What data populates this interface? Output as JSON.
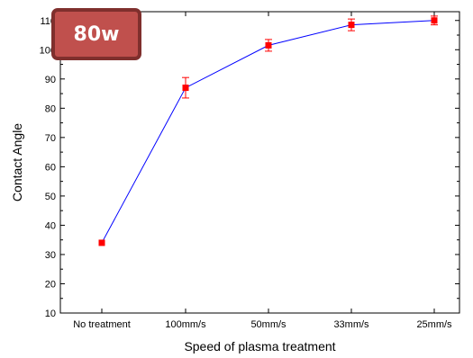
{
  "badge": {
    "label": "80w"
  },
  "colors": {
    "line": "#0000ff",
    "marker": "#ff0000",
    "error_bar": "#ff0000",
    "badge_fill": "#c0504d",
    "badge_border": "#7f2f2d"
  },
  "chart_data": {
    "type": "line",
    "categories": [
      "No treatment",
      "100mm/s",
      "50mm/s",
      "33mm/s",
      "25mm/s"
    ],
    "values": [
      34,
      87,
      101.5,
      108.5,
      110
    ],
    "errors": [
      0,
      3.5,
      2,
      2,
      1.5
    ],
    "xlabel": "Speed of plasma treatment",
    "ylabel": "Contact  Angle",
    "ylim": [
      10,
      113
    ],
    "yticks": [
      10,
      20,
      30,
      40,
      50,
      60,
      70,
      80,
      90,
      100,
      110
    ],
    "grid": false
  }
}
